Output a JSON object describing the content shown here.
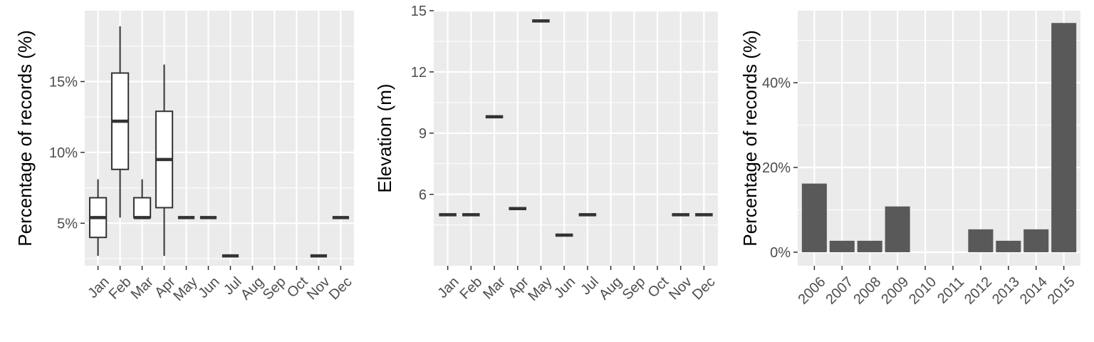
{
  "colors": {
    "panel_bg": "#ebebeb",
    "grid": "#ffffff",
    "box_stroke": "#333333",
    "box_fill": "#ffffff",
    "bar_fill": "#595959",
    "tick_label": "#4d4d4d",
    "axis_title": "#000000"
  },
  "chart_data": [
    {
      "type": "box",
      "ylabel": "Percentage of records (%)",
      "xlabel": "",
      "ylim": [
        2,
        20
      ],
      "y_ticks": [
        5,
        10,
        15
      ],
      "y_tick_labels": [
        "5%",
        "10%",
        "15%"
      ],
      "categories": [
        "Jan",
        "Feb",
        "Mar",
        "Apr",
        "May",
        "Jun",
        "Jul",
        "Aug",
        "Sep",
        "Oct",
        "Nov",
        "Dec"
      ],
      "boxes": [
        {
          "category": "Jan",
          "min": 2.7,
          "q1": 4.0,
          "median": 5.4,
          "q3": 6.8,
          "max": 8.1
        },
        {
          "category": "Feb",
          "min": 5.4,
          "q1": 8.8,
          "median": 12.2,
          "q3": 15.6,
          "max": 18.9
        },
        {
          "category": "Mar",
          "min": 5.4,
          "q1": 5.4,
          "median": 5.4,
          "q3": 6.8,
          "max": 8.1
        },
        {
          "category": "Apr",
          "min": 2.7,
          "q1": 6.1,
          "median": 9.5,
          "q3": 12.9,
          "max": 16.2
        },
        {
          "category": "May",
          "min": 5.4,
          "q1": 5.4,
          "median": 5.4,
          "q3": 5.4,
          "max": 5.4
        },
        {
          "category": "Jun",
          "min": 5.4,
          "q1": 5.4,
          "median": 5.4,
          "q3": 5.4,
          "max": 5.4
        },
        {
          "category": "Jul",
          "min": 2.7,
          "q1": 2.7,
          "median": 2.7,
          "q3": 2.7,
          "max": 2.7
        },
        {
          "category": "Nov",
          "min": 2.7,
          "q1": 2.7,
          "median": 2.7,
          "q3": 2.7,
          "max": 2.7
        },
        {
          "category": "Dec",
          "min": 5.4,
          "q1": 5.4,
          "median": 5.4,
          "q3": 5.4,
          "max": 5.4
        }
      ],
      "grid": true,
      "legend": "none"
    },
    {
      "type": "box",
      "ylabel": "Elevation (m)",
      "xlabel": "",
      "ylim": [
        2.5,
        15
      ],
      "y_ticks": [
        6,
        9,
        12,
        15
      ],
      "y_tick_labels": [
        "6",
        "9",
        "12",
        "15"
      ],
      "categories": [
        "Jan",
        "Feb",
        "Mar",
        "Apr",
        "May",
        "Jun",
        "Jul",
        "Aug",
        "Sep",
        "Oct",
        "Nov",
        "Dec"
      ],
      "boxes": [
        {
          "category": "Jan",
          "min": 5,
          "q1": 5,
          "median": 5,
          "q3": 5,
          "max": 5
        },
        {
          "category": "Feb",
          "min": 5,
          "q1": 5,
          "median": 5,
          "q3": 5,
          "max": 5
        },
        {
          "category": "Mar",
          "min": 9.8,
          "q1": 9.8,
          "median": 9.8,
          "q3": 9.8,
          "max": 9.8
        },
        {
          "category": "Apr",
          "min": 5.3,
          "q1": 5.3,
          "median": 5.3,
          "q3": 5.3,
          "max": 5.3
        },
        {
          "category": "May",
          "min": 14.5,
          "q1": 14.5,
          "median": 14.5,
          "q3": 14.5,
          "max": 14.5
        },
        {
          "category": "Jun",
          "min": 4,
          "q1": 4,
          "median": 4,
          "q3": 4,
          "max": 4
        },
        {
          "category": "Jul",
          "min": 5,
          "q1": 5,
          "median": 5,
          "q3": 5,
          "max": 5
        },
        {
          "category": "Nov",
          "min": 5,
          "q1": 5,
          "median": 5,
          "q3": 5,
          "max": 5
        },
        {
          "category": "Dec",
          "min": 5,
          "q1": 5,
          "median": 5,
          "q3": 5,
          "max": 5
        }
      ],
      "grid": true,
      "legend": "none"
    },
    {
      "type": "bar",
      "ylabel": "Percentage of records (%)",
      "xlabel": "",
      "ylim": [
        -3.2,
        57
      ],
      "y_ticks": [
        0,
        20,
        40
      ],
      "y_tick_labels": [
        "0%",
        "20%",
        "40%"
      ],
      "categories": [
        "2006",
        "2007",
        "2008",
        "2009",
        "2010",
        "2011",
        "2012",
        "2013",
        "2014",
        "2015"
      ],
      "values": [
        16.2,
        2.7,
        2.7,
        10.8,
        0,
        0,
        5.4,
        2.7,
        5.4,
        54.1
      ],
      "grid": true,
      "legend": "none"
    }
  ]
}
